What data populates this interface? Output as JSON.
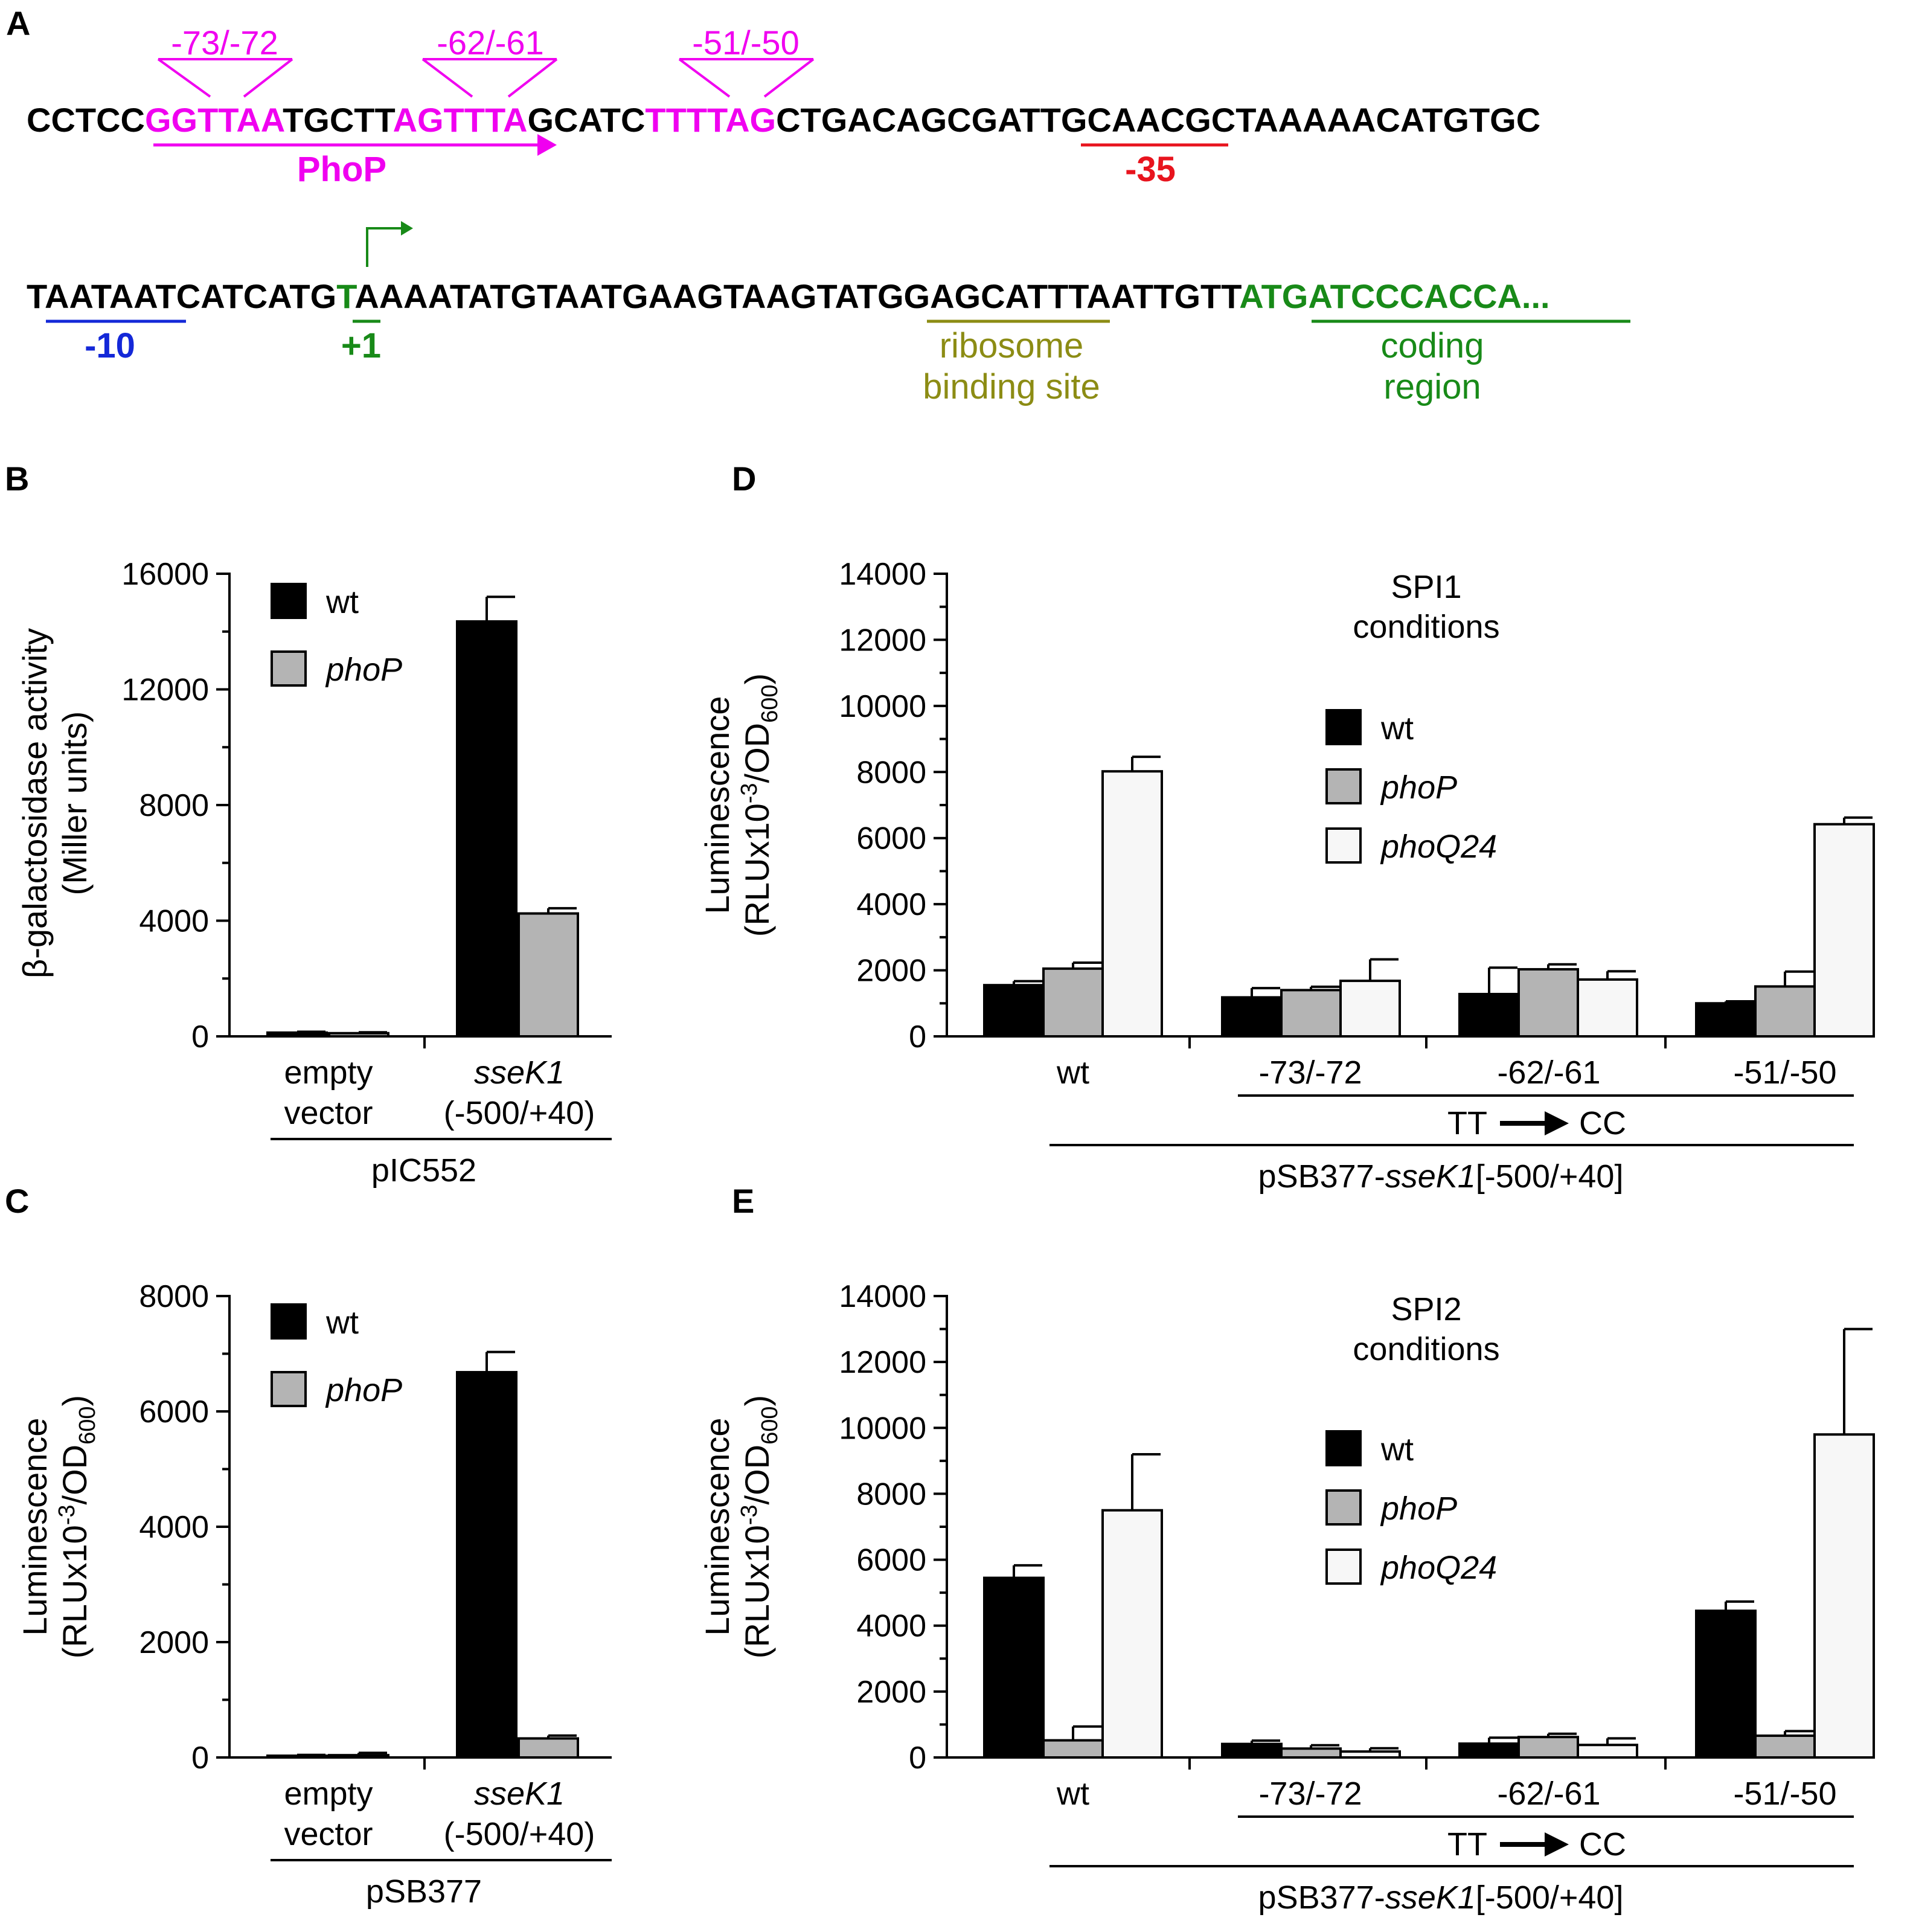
{
  "colors": {
    "magenta": "#f000f0",
    "red": "#e8141e",
    "blue": "#1428d8",
    "green": "#188a18",
    "olive": "#8c8c14",
    "wt": "#000000",
    "phoP": "#b4b4b4",
    "phoQ24": "#f7f7f7"
  },
  "panel_a": {
    "label": "A",
    "line1": [
      "CCTCC",
      "GGTTAA",
      "TGCTT",
      "AGTTTA",
      "GCATC",
      "TTTTAG",
      "CTGACAGCGA",
      "TTGCAA",
      "CGCTAAAAACATGTGC"
    ],
    "line2": [
      "TAATAAT",
      "CATCATG",
      "T",
      "AAAATATGTAATGAAGTAAGTAT",
      "GGAGCAT",
      "TTAATTGTT",
      "ATGATCCCACCA..."
    ],
    "mutation_labels": [
      "-73/-72",
      "-62/-61",
      "-51/-50"
    ],
    "phop_label": "PhoP",
    "minus35": "-35",
    "minus10": "-10",
    "plus1": "+1",
    "rbs_label": [
      "ribosome",
      "binding site"
    ],
    "coding_label": [
      "coding",
      "region"
    ]
  },
  "chart_data": [
    {
      "panel": "B",
      "type": "bar",
      "ylabel": [
        "β-galactosidase activity",
        "(Miller units)"
      ],
      "ylim": [
        0,
        16000
      ],
      "yticks": [
        0,
        4000,
        8000,
        12000,
        16000
      ],
      "groups": [
        [
          "empty",
          "vector"
        ],
        [
          "sseK1",
          "(-500/+40)"
        ]
      ],
      "group_label": "pIC552",
      "series": [
        {
          "name": "wt",
          "color": "#000000",
          "values": [
            130,
            14350
          ],
          "errors": [
            30,
            850
          ]
        },
        {
          "name": "phoP",
          "color": "#b4b4b4",
          "values": [
            110,
            4250
          ],
          "errors": [
            30,
            180
          ]
        }
      ]
    },
    {
      "panel": "C",
      "type": "bar",
      "ylabel": [
        "Luminescence",
        "(RLUx10",
        "-3",
        "/OD",
        "600",
        ")"
      ],
      "ylim": [
        0,
        8000
      ],
      "yticks": [
        0,
        2000,
        4000,
        6000,
        8000
      ],
      "groups": [
        [
          "empty",
          "vector"
        ],
        [
          "sseK1",
          "(-500/+40)"
        ]
      ],
      "group_label": "pSB377",
      "series": [
        {
          "name": "wt",
          "color": "#000000",
          "values": [
            30,
            6680
          ],
          "errors": [
            15,
            350
          ]
        },
        {
          "name": "phoP",
          "color": "#b4b4b4",
          "values": [
            40,
            330
          ],
          "errors": [
            40,
            50
          ]
        }
      ]
    },
    {
      "panel": "D",
      "type": "bar",
      "title": [
        "SPI1",
        "conditions"
      ],
      "ylabel": [
        "Luminescence",
        "(RLUx10",
        "-3",
        "/OD",
        "600",
        ")"
      ],
      "ylim": [
        0,
        14000
      ],
      "yticks": [
        0,
        2000,
        4000,
        6000,
        8000,
        10000,
        12000,
        14000
      ],
      "categories": [
        "wt",
        "-73/-72",
        "-62/-61",
        "-51/-50"
      ],
      "mutation_label": [
        "TT",
        "CC"
      ],
      "construct_label": [
        "pSB377-",
        "sseK1",
        "[-500/+40]"
      ],
      "series": [
        {
          "name": "phoQ24",
          "color": "#f7f7f7",
          "values": [
            8020,
            1680,
            1720,
            6420
          ],
          "errors": [
            440,
            650,
            250,
            200
          ]
        },
        {
          "name": "wt",
          "color": "#000000",
          "values": [
            1550,
            1180,
            1280,
            1000
          ],
          "errors": [
            120,
            280,
            800,
            60
          ]
        },
        {
          "name": "phoP",
          "color": "#b4b4b4",
          "values": [
            2050,
            1400,
            2030,
            1510
          ],
          "errors": [
            180,
            100,
            150,
            450
          ]
        }
      ]
    },
    {
      "panel": "E",
      "type": "bar",
      "title": [
        "SPI2",
        "conditions"
      ],
      "ylabel": [
        "Luminescence",
        "(RLUx10",
        "-3",
        "/OD",
        "600",
        ")"
      ],
      "ylim": [
        0,
        14000
      ],
      "yticks": [
        0,
        2000,
        4000,
        6000,
        8000,
        10000,
        12000,
        14000
      ],
      "categories": [
        "wt",
        "-73/-72",
        "-62/-61",
        "-51/-50"
      ],
      "mutation_label": [
        "TT",
        "CC"
      ],
      "construct_label": [
        "pSB377-",
        "sseK1",
        "[-500/+40]"
      ],
      "series": [
        {
          "name": "phoQ24",
          "color": "#f7f7f7",
          "values": [
            7500,
            180,
            380,
            9800
          ],
          "errors": [
            1700,
            100,
            200,
            3200
          ]
        },
        {
          "name": "wt",
          "color": "#000000",
          "values": [
            5450,
            410,
            420,
            4450
          ],
          "errors": [
            380,
            100,
            180,
            280
          ]
        },
        {
          "name": "phoP",
          "color": "#b4b4b4",
          "values": [
            520,
            270,
            620,
            660
          ],
          "errors": [
            420,
            100,
            100,
            140
          ]
        }
      ]
    }
  ]
}
